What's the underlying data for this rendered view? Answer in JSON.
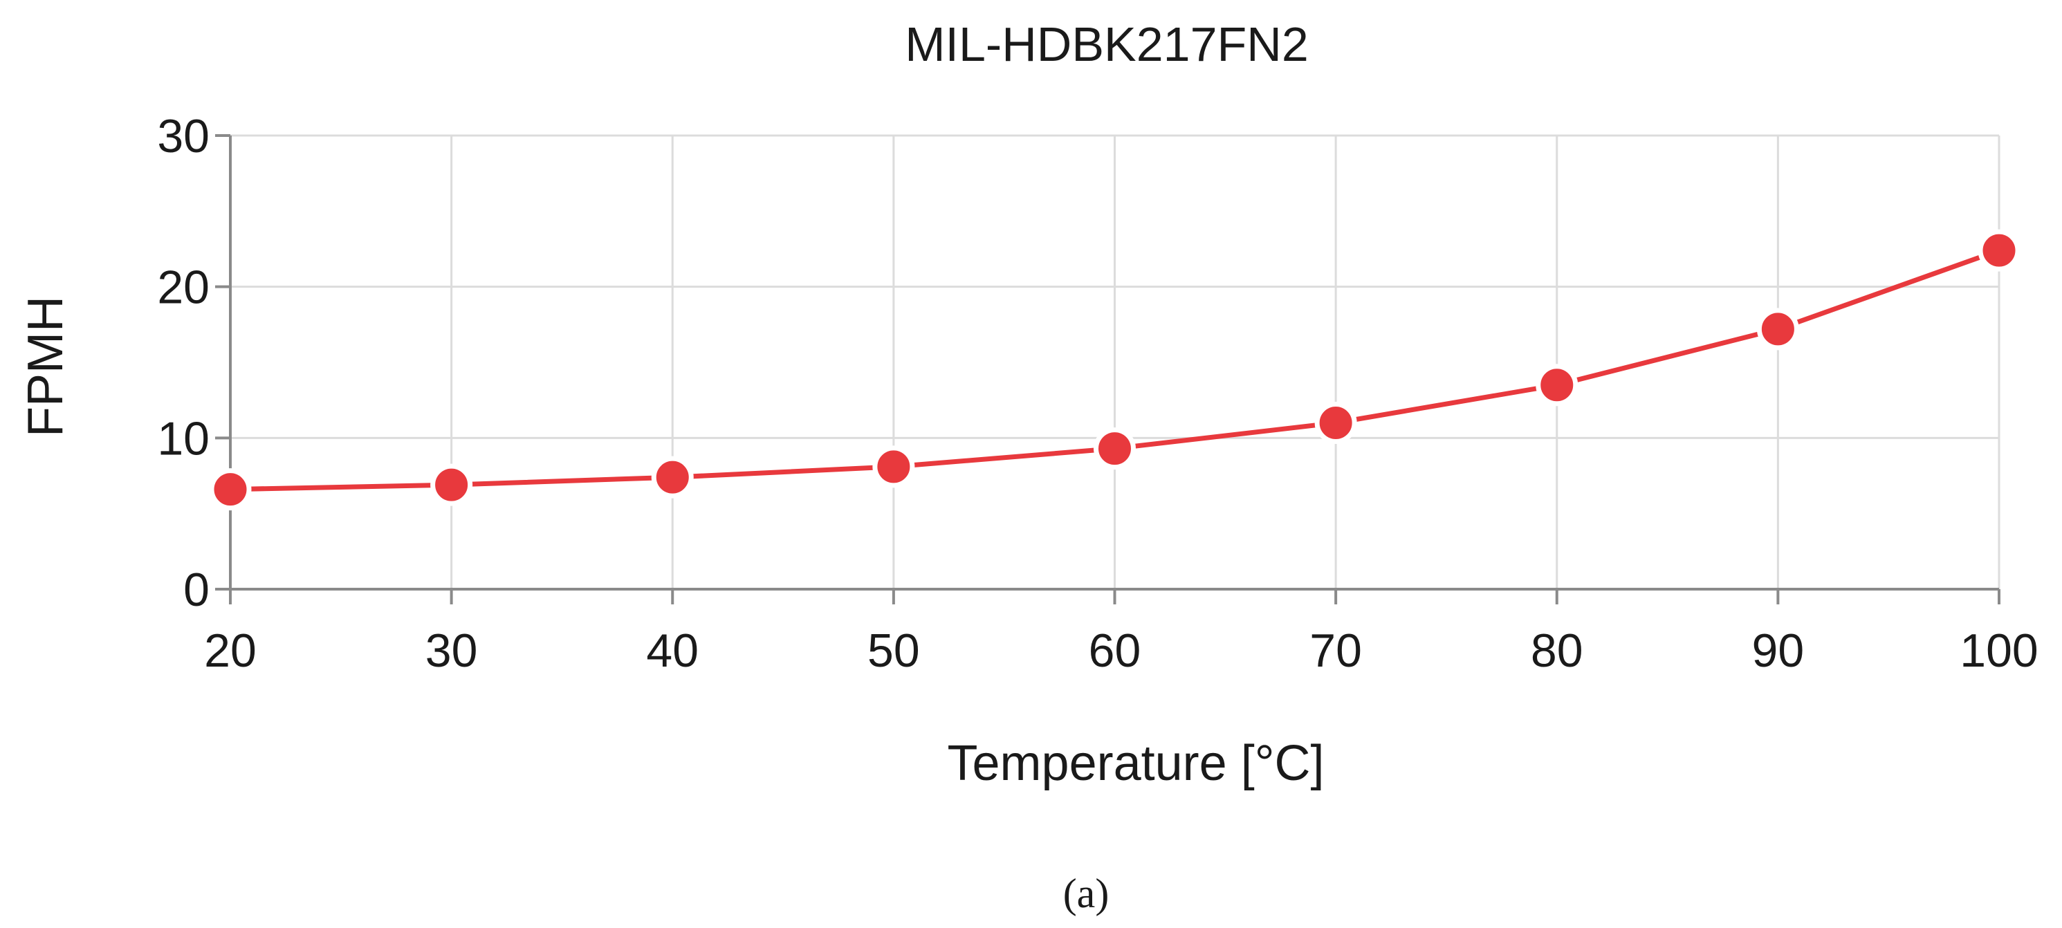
{
  "chart_data": {
    "type": "line",
    "title": "MIL-HDBK217FN2",
    "xlabel": "Temperature [°C]",
    "ylabel": "FPMH",
    "xlim": [
      20,
      100
    ],
    "ylim": [
      0,
      30
    ],
    "x_ticks": [
      20,
      30,
      40,
      50,
      60,
      70,
      80,
      90,
      100
    ],
    "y_ticks": [
      0,
      10,
      20,
      30
    ],
    "grid": true,
    "legend": "none",
    "series": [
      {
        "color": "#e8393d",
        "x": [
          20,
          30,
          40,
          50,
          60,
          70,
          80,
          90,
          100
        ],
        "y": [
          6.6,
          6.9,
          7.4,
          8.1,
          9.3,
          11.0,
          13.5,
          17.2,
          22.4
        ]
      }
    ]
  },
  "caption": "(a)",
  "colors": {
    "series": "#e8393d",
    "grid": "#dcdcdc",
    "axis": "#8a8a8a",
    "text": "#1a1a1a"
  }
}
